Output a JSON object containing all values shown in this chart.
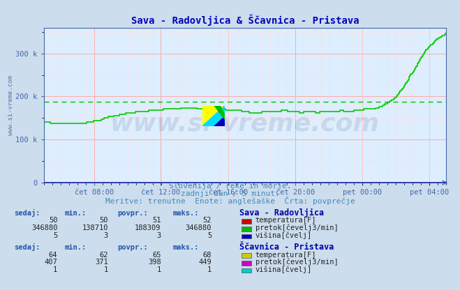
{
  "title": "Sava - Radovljica & Ščavnica - Pristava",
  "bg_color": "#ccdded",
  "plot_bg_color": "#ddeeff",
  "grid_color_major": "#ffaaaa",
  "grid_color_minor": "#ffdddd",
  "axis_color": "#4466aa",
  "title_color": "#0000bb",
  "text_color": "#4488bb",
  "ylabel_text": "www.si-vreme.com",
  "xticklabels": [
    "čet 08:00",
    "čet 12:00",
    "čet 16:00",
    "čet 20:00",
    "pet 00:00",
    "pet 04:00"
  ],
  "xtick_positions": [
    0.125,
    0.291,
    0.458,
    0.625,
    0.791,
    0.958
  ],
  "ytick_labels": [
    "0",
    "100 k",
    "200 k",
    "300 k"
  ],
  "ytick_positions": [
    0,
    100000,
    200000,
    300000
  ],
  "ymax": 346880,
  "ymin": 0,
  "avg_line_color": "#00bb00",
  "avg_line_value": 188309,
  "watermark_text": "www.si-vreme.com",
  "watermark_color": "#1a3a6a",
  "watermark_alpha": 0.12,
  "footer_line1": "Slovenija / reke in morje.",
  "footer_line2": "zadnji dan / 5 minut.",
  "footer_line3": "Meritve: trenutne  Enote: anglešaške  Črta: povprečje",
  "table1_header": "Sava - Radovljica",
  "table_col_headers": [
    "sedaj:",
    "min.:",
    "povpr.:",
    "maks.:"
  ],
  "table1_rows": [
    [
      50,
      50,
      51,
      52,
      "#cc0000",
      "temperatura[F]"
    ],
    [
      346880,
      138710,
      188309,
      346880,
      "#00bb00",
      "pretok[čevelj3/min]"
    ],
    [
      5,
      3,
      3,
      5,
      "#0000cc",
      "višina[čvelj]"
    ]
  ],
  "table2_header": "Ščavnica - Pristava",
  "table2_rows": [
    [
      64,
      62,
      65,
      68,
      "#cccc00",
      "temperatura[F]"
    ],
    [
      407,
      371,
      398,
      449,
      "#cc00cc",
      "pretok[čevelj3/min]"
    ],
    [
      1,
      1,
      1,
      1,
      "#00cccc",
      "višina[čvelj]"
    ]
  ],
  "line_color": "#00cc00",
  "line_width": 1.2,
  "flow_x": [
    0.0,
    0.04,
    0.1,
    0.14,
    0.16,
    0.2,
    0.24,
    0.28,
    0.32,
    0.36,
    0.4,
    0.44,
    0.48,
    0.5,
    0.52,
    0.56,
    0.6,
    0.62,
    0.64,
    0.66,
    0.68,
    0.7,
    0.72,
    0.74,
    0.76,
    0.78,
    0.8,
    0.82,
    0.84,
    0.86,
    0.87,
    0.88,
    0.89,
    0.9,
    0.91,
    0.92,
    0.93,
    0.94,
    0.95,
    0.96,
    0.97,
    0.98,
    1.0
  ],
  "flow_y": [
    140000,
    138710,
    138710,
    145000,
    152000,
    160000,
    165000,
    168000,
    172000,
    173000,
    172000,
    170000,
    168000,
    165000,
    162000,
    165000,
    167000,
    165000,
    163000,
    165000,
    163000,
    165000,
    165000,
    167000,
    165000,
    168000,
    170000,
    172000,
    178000,
    188000,
    195000,
    205000,
    218000,
    232000,
    248000,
    262000,
    278000,
    293000,
    308000,
    318000,
    327000,
    335000,
    346880
  ]
}
